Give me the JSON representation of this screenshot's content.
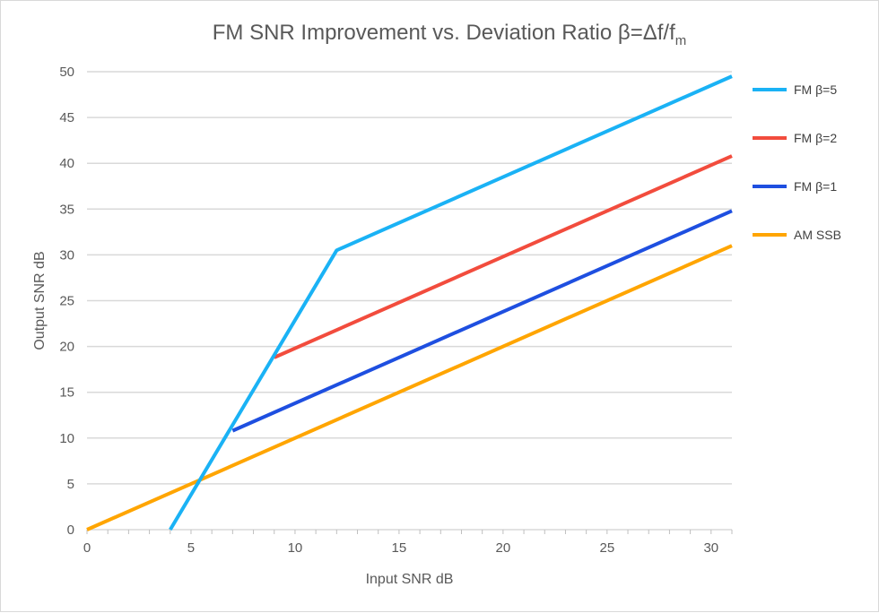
{
  "chart_data": {
    "type": "line",
    "title": "FM SNR Improvement vs. Deviation Ratio β=Δf/f",
    "title_subscript": "m",
    "xlabel": "Input SNR dB",
    "ylabel": "Output SNR dB",
    "xlim": [
      0,
      31
    ],
    "ylim": [
      0,
      50
    ],
    "xticks": [
      0,
      5,
      10,
      15,
      20,
      25,
      30
    ],
    "yticks": [
      0,
      5,
      10,
      15,
      20,
      25,
      30,
      35,
      40,
      45,
      50
    ],
    "grid": "horizontal",
    "legend": "right",
    "series": [
      {
        "name": "FM β=5",
        "color": "#1AB2F5",
        "x": [
          4,
          12,
          31
        ],
        "y": [
          0,
          30.5,
          49.5
        ]
      },
      {
        "name": "FM β=2",
        "color": "#F24C3D",
        "x": [
          9,
          31
        ],
        "y": [
          18.8,
          40.8
        ]
      },
      {
        "name": "FM β=1",
        "color": "#1E4FE0",
        "x": [
          7,
          31
        ],
        "y": [
          10.8,
          34.8
        ]
      },
      {
        "name": "AM SSB",
        "color": "#FFA500",
        "x": [
          0,
          31
        ],
        "y": [
          0,
          31
        ]
      }
    ]
  }
}
